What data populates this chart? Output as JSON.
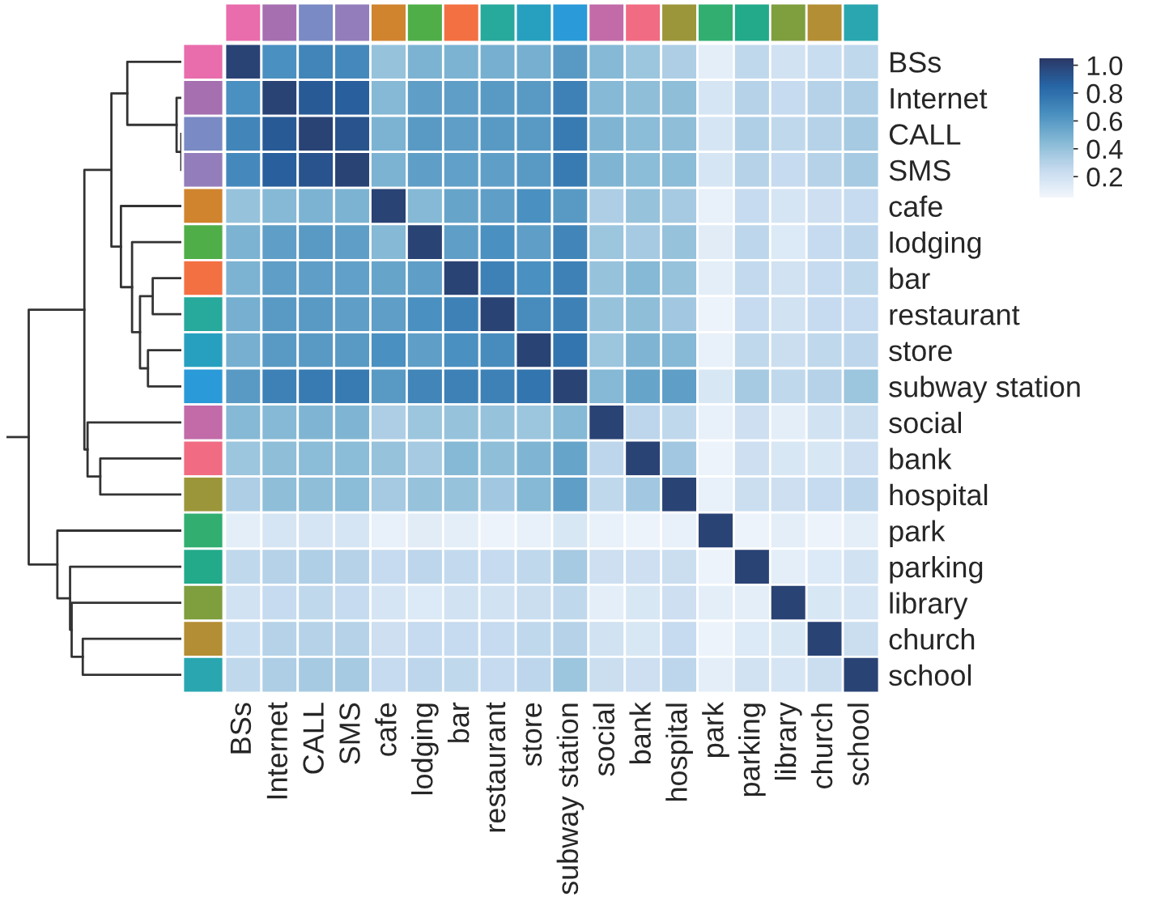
{
  "chart_data": {
    "type": "heatmap",
    "categories": [
      "BSs",
      "Internet",
      "CALL",
      "SMS",
      "cafe",
      "lodging",
      "bar",
      "restaurant",
      "store",
      "subway station",
      "social",
      "bank",
      "hospital",
      "park",
      "parking",
      "library",
      "church",
      "school"
    ],
    "y_categories": [
      "BSs",
      "Internet",
      "CALL",
      "SMS",
      "cafe",
      "lodging",
      "bar",
      "restaurant",
      "store",
      "subway station",
      "social",
      "bank",
      "hospital",
      "park",
      "parking",
      "library",
      "church",
      "school"
    ],
    "cells": [
      [
        1.0,
        0.65,
        0.7,
        0.68,
        0.4,
        0.48,
        0.48,
        0.5,
        0.5,
        0.6,
        0.45,
        0.38,
        0.33,
        0.12,
        0.27,
        0.2,
        0.24,
        0.27
      ],
      [
        0.65,
        1.0,
        0.9,
        0.88,
        0.45,
        0.58,
        0.58,
        0.6,
        0.6,
        0.72,
        0.45,
        0.42,
        0.42,
        0.18,
        0.3,
        0.25,
        0.3,
        0.33
      ],
      [
        0.7,
        0.9,
        1.0,
        0.93,
        0.48,
        0.6,
        0.58,
        0.6,
        0.6,
        0.75,
        0.47,
        0.43,
        0.42,
        0.18,
        0.32,
        0.27,
        0.3,
        0.35
      ],
      [
        0.68,
        0.88,
        0.93,
        1.0,
        0.48,
        0.58,
        0.57,
        0.58,
        0.6,
        0.75,
        0.47,
        0.43,
        0.43,
        0.18,
        0.3,
        0.25,
        0.3,
        0.35
      ],
      [
        0.4,
        0.45,
        0.48,
        0.48,
        1.0,
        0.45,
        0.55,
        0.58,
        0.65,
        0.6,
        0.33,
        0.4,
        0.35,
        0.1,
        0.25,
        0.18,
        0.22,
        0.25
      ],
      [
        0.48,
        0.58,
        0.6,
        0.58,
        0.45,
        1.0,
        0.58,
        0.65,
        0.58,
        0.7,
        0.38,
        0.35,
        0.4,
        0.13,
        0.28,
        0.15,
        0.25,
        0.28
      ],
      [
        0.48,
        0.58,
        0.58,
        0.57,
        0.55,
        0.58,
        1.0,
        0.72,
        0.65,
        0.72,
        0.4,
        0.45,
        0.4,
        0.12,
        0.26,
        0.2,
        0.25,
        0.27
      ],
      [
        0.5,
        0.6,
        0.6,
        0.58,
        0.58,
        0.65,
        0.72,
        1.0,
        0.67,
        0.72,
        0.4,
        0.42,
        0.36,
        0.08,
        0.25,
        0.2,
        0.25,
        0.25
      ],
      [
        0.5,
        0.6,
        0.6,
        0.6,
        0.65,
        0.58,
        0.65,
        0.67,
        1.0,
        0.78,
        0.38,
        0.47,
        0.45,
        0.1,
        0.27,
        0.23,
        0.27,
        0.28
      ],
      [
        0.6,
        0.72,
        0.75,
        0.75,
        0.6,
        0.7,
        0.72,
        0.72,
        0.78,
        1.0,
        0.45,
        0.55,
        0.58,
        0.17,
        0.35,
        0.27,
        0.3,
        0.38
      ],
      [
        0.45,
        0.45,
        0.47,
        0.47,
        0.33,
        0.38,
        0.4,
        0.4,
        0.38,
        0.45,
        1.0,
        0.28,
        0.27,
        0.1,
        0.22,
        0.12,
        0.2,
        0.23
      ],
      [
        0.38,
        0.42,
        0.43,
        0.43,
        0.4,
        0.35,
        0.45,
        0.42,
        0.47,
        0.55,
        0.28,
        1.0,
        0.36,
        0.08,
        0.22,
        0.17,
        0.17,
        0.22
      ],
      [
        0.33,
        0.42,
        0.42,
        0.43,
        0.35,
        0.4,
        0.4,
        0.36,
        0.45,
        0.58,
        0.27,
        0.36,
        1.0,
        0.1,
        0.23,
        0.22,
        0.25,
        0.28
      ],
      [
        0.12,
        0.18,
        0.18,
        0.18,
        0.1,
        0.13,
        0.12,
        0.08,
        0.1,
        0.17,
        0.1,
        0.08,
        0.1,
        1.0,
        0.08,
        0.12,
        0.08,
        0.12
      ],
      [
        0.27,
        0.3,
        0.32,
        0.3,
        0.25,
        0.28,
        0.26,
        0.25,
        0.27,
        0.35,
        0.22,
        0.22,
        0.23,
        0.08,
        1.0,
        0.12,
        0.15,
        0.2
      ],
      [
        0.2,
        0.25,
        0.27,
        0.25,
        0.18,
        0.15,
        0.2,
        0.2,
        0.23,
        0.27,
        0.12,
        0.17,
        0.22,
        0.12,
        0.12,
        1.0,
        0.17,
        0.18
      ],
      [
        0.24,
        0.3,
        0.3,
        0.3,
        0.22,
        0.25,
        0.25,
        0.25,
        0.27,
        0.3,
        0.2,
        0.17,
        0.25,
        0.08,
        0.15,
        0.17,
        1.0,
        0.23
      ],
      [
        0.27,
        0.33,
        0.35,
        0.35,
        0.25,
        0.28,
        0.27,
        0.25,
        0.28,
        0.38,
        0.23,
        0.22,
        0.28,
        0.12,
        0.2,
        0.18,
        0.23,
        1.0
      ]
    ],
    "clim": [
      0.05,
      1.05
    ],
    "cticks": [
      0.2,
      0.4,
      0.6,
      0.8,
      {
        "value": 1,
        "label": "1.0"
      }
    ]
  }
}
